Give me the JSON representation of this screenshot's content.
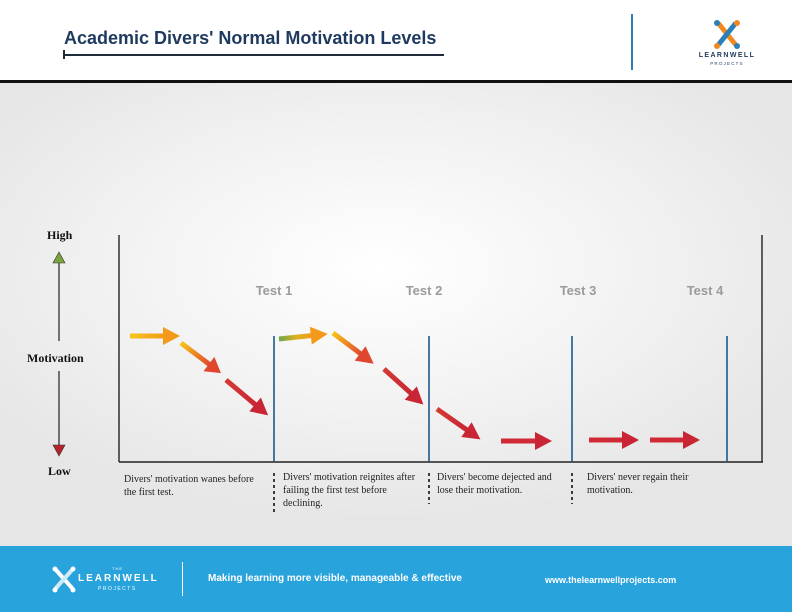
{
  "header": {
    "title": "Academic Divers' Normal Motivation Levels",
    "logo_text": "LEARNWELL",
    "logo_sub": "PROJECTS"
  },
  "diagram": {
    "y_axis": {
      "high": "High",
      "label": "Motivation",
      "low": "Low"
    },
    "tests": [
      {
        "label": "Test 1"
      },
      {
        "label": "Test 2"
      },
      {
        "label": "Test 3"
      },
      {
        "label": "Test 4"
      }
    ],
    "captions": [
      "Divers' motivation wanes before the first test.",
      "Divers' motivation reignites after failing the first test before declining.",
      "Divers' become dejected and lose their motivation.",
      "Divers' never regain their motivation."
    ],
    "colors": {
      "yellow": "#f6c519",
      "orange": "#f08a1e",
      "red": "#d12a35",
      "green": "#6aa84f",
      "test_line": "#1b5a8a",
      "up_arrow": "#79a33b",
      "down_arrow": "#b8222a"
    }
  },
  "footer": {
    "logo_the": "THE",
    "logo_text": "LEARNWELL",
    "logo_sub": "PROJECTS",
    "tagline": "Making learning more visible, manageable & effective",
    "website": "www.thelearnwellprojects.com"
  }
}
